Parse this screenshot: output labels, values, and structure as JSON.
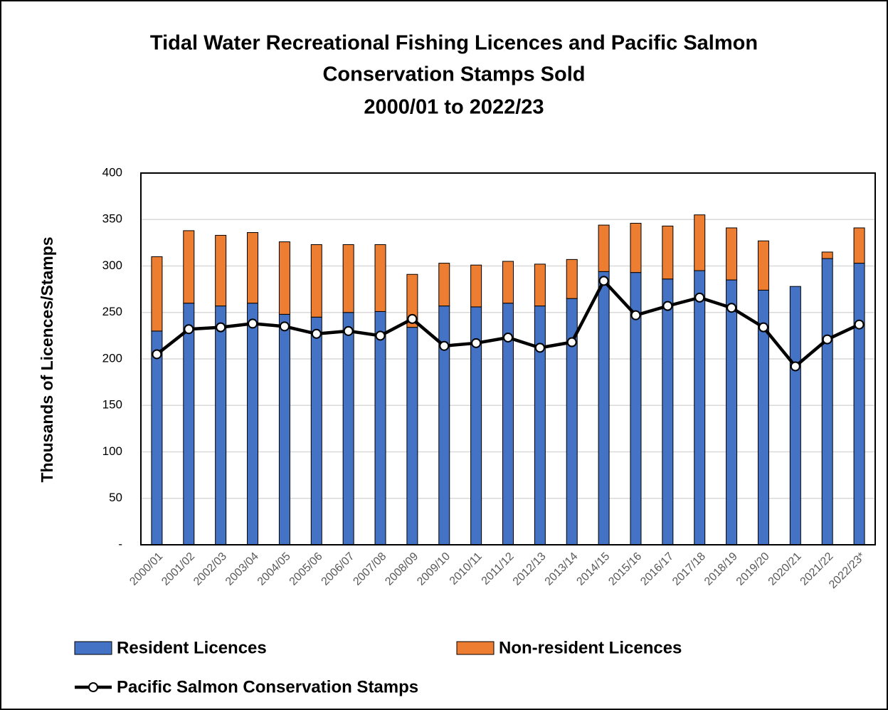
{
  "chart_data": {
    "type": "bar",
    "title": [
      "Tidal Water Recreational Fishing Licences and Pacific Salmon",
      "Conservation Stamps Sold",
      "2000/01 to 2022/23"
    ],
    "y_label": "Thousands of Licences/Stamps",
    "categories": [
      "2000/01",
      "2001/02",
      "2002/03",
      "2003/04",
      "2004/05",
      "2005/06",
      "2006/07",
      "2007/08",
      "2008/09",
      "2009/10",
      "2010/11",
      "2011/12",
      "2012/13",
      "2013/14",
      "2014/15",
      "2015/16",
      "2016/17",
      "2017/18",
      "2018/19",
      "2019/20",
      "2020/21",
      "2021/22",
      "2022/23*"
    ],
    "series": [
      {
        "name": "Resident Licences",
        "color": "#4472c4",
        "kind": "bar",
        "values": [
          230,
          260,
          257,
          260,
          248,
          245,
          250,
          251,
          234,
          257,
          256,
          260,
          257,
          265,
          294,
          293,
          286,
          295,
          285,
          274,
          278,
          308,
          303
        ]
      },
      {
        "name": "Non-resident Licences",
        "color": "#ed7d31",
        "kind": "bar",
        "values": [
          80,
          78,
          76,
          76,
          78,
          78,
          73,
          72,
          57,
          46,
          45,
          45,
          45,
          42,
          50,
          53,
          57,
          60,
          56,
          53,
          0,
          7,
          38
        ]
      },
      {
        "name": "Pacific Salmon Conservation Stamps",
        "color": "#000000",
        "kind": "line",
        "values": [
          205,
          232,
          234,
          238,
          235,
          227,
          230,
          225,
          243,
          214,
          217,
          223,
          212,
          218,
          284,
          247,
          257,
          266,
          255,
          234,
          192,
          221,
          237
        ]
      }
    ],
    "ylim": [
      0,
      400
    ],
    "yticks": [
      {
        "value": 0,
        "label": "-"
      },
      50,
      100,
      150,
      200,
      250,
      300,
      350,
      400
    ],
    "grid": true
  }
}
